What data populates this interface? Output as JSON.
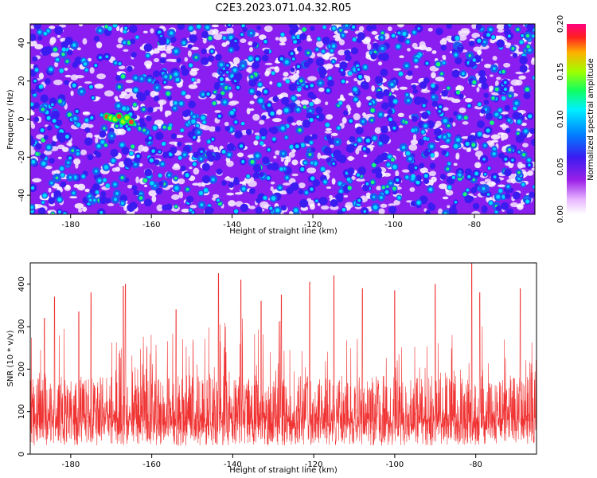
{
  "title": "C2E3.2023.071.04.32.R05",
  "chart_data": [
    {
      "type": "heatmap",
      "xlabel": "Height of straight line (km)",
      "ylabel": "Frequency (Hz)",
      "xlim": [
        -190,
        -65
      ],
      "ylim": [
        -50,
        50
      ],
      "xticks": [
        -180,
        -160,
        -140,
        -120,
        -100,
        -80
      ],
      "yticks": [
        40,
        20,
        0,
        -20,
        -40
      ],
      "colorbar": {
        "label": "Normalized spectral amplitude",
        "range": [
          0,
          0.2
        ],
        "ticks": [
          "0.00",
          "0.05",
          "0.10",
          "0.15",
          "0.20"
        ]
      },
      "highlight": {
        "x_range": [
          -171,
          -165
        ],
        "y": 0,
        "value": 0.2
      }
    },
    {
      "type": "line",
      "xlabel": "Height of straight line (km)",
      "ylabel": "SNR (10 * v/v)",
      "xlim": [
        -190,
        -65
      ],
      "ylim": [
        0,
        450
      ],
      "xticks": [
        -180,
        -160,
        -140,
        -120,
        -100,
        -80
      ],
      "yticks": [
        0,
        100,
        200,
        300,
        400
      ],
      "color": "#f03232",
      "baseline_mean": 120,
      "peaks": [
        {
          "x": -186.5,
          "y": 320
        },
        {
          "x": -184,
          "y": 370
        },
        {
          "x": -178,
          "y": 335
        },
        {
          "x": -175,
          "y": 380
        },
        {
          "x": -167,
          "y": 395
        },
        {
          "x": -166.5,
          "y": 400
        },
        {
          "x": -154,
          "y": 340
        },
        {
          "x": -143.5,
          "y": 425
        },
        {
          "x": -138,
          "y": 410
        },
        {
          "x": -133,
          "y": 360
        },
        {
          "x": -128,
          "y": 375
        },
        {
          "x": -121,
          "y": 405
        },
        {
          "x": -115,
          "y": 420
        },
        {
          "x": -108,
          "y": 390
        },
        {
          "x": -100,
          "y": 385
        },
        {
          "x": -90,
          "y": 400
        },
        {
          "x": -81,
          "y": 450
        },
        {
          "x": -79,
          "y": 380
        },
        {
          "x": -69,
          "y": 390
        }
      ]
    }
  ]
}
